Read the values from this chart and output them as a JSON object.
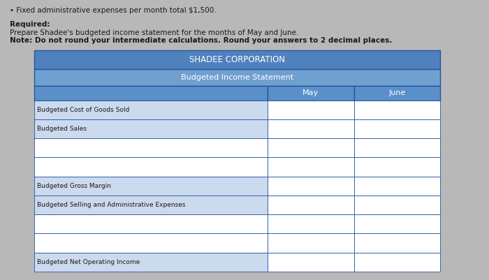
{
  "bullet_text": "Fixed administrative expenses per month total $1,500.",
  "required_label": "Required:",
  "required_line1": "Prepare Shadee's budgeted income statement for the months of May and June.",
  "required_line2": "Note: Do not round your intermediate calculations. Round your answers to 2 decimal places.",
  "title1": "SHADEE CORPORATION",
  "title2": "Budgeted Income Statement",
  "col_headers": [
    "May",
    "June"
  ],
  "row_labels": [
    "Budgeted Cost of Goods Sold",
    "Budgeted Sales",
    "",
    "",
    "Budgeted Gross Margin",
    "Budgeted Selling and Administrative Expenses",
    "",
    "",
    "Budgeted Net Operating Income"
  ],
  "header_bg": "#4f81bd",
  "header_text_color": "#ffffff",
  "subheader_bg": "#6fa0d0",
  "col_header_bg": "#5a8fca",
  "row_bg_labeled": "#ccdaee",
  "row_bg_empty": "#ffffff",
  "border_color": "#2255a0",
  "text_color": "#1a1a1a",
  "background_color": "#b8b8b8",
  "note_bold_color": "#000000"
}
